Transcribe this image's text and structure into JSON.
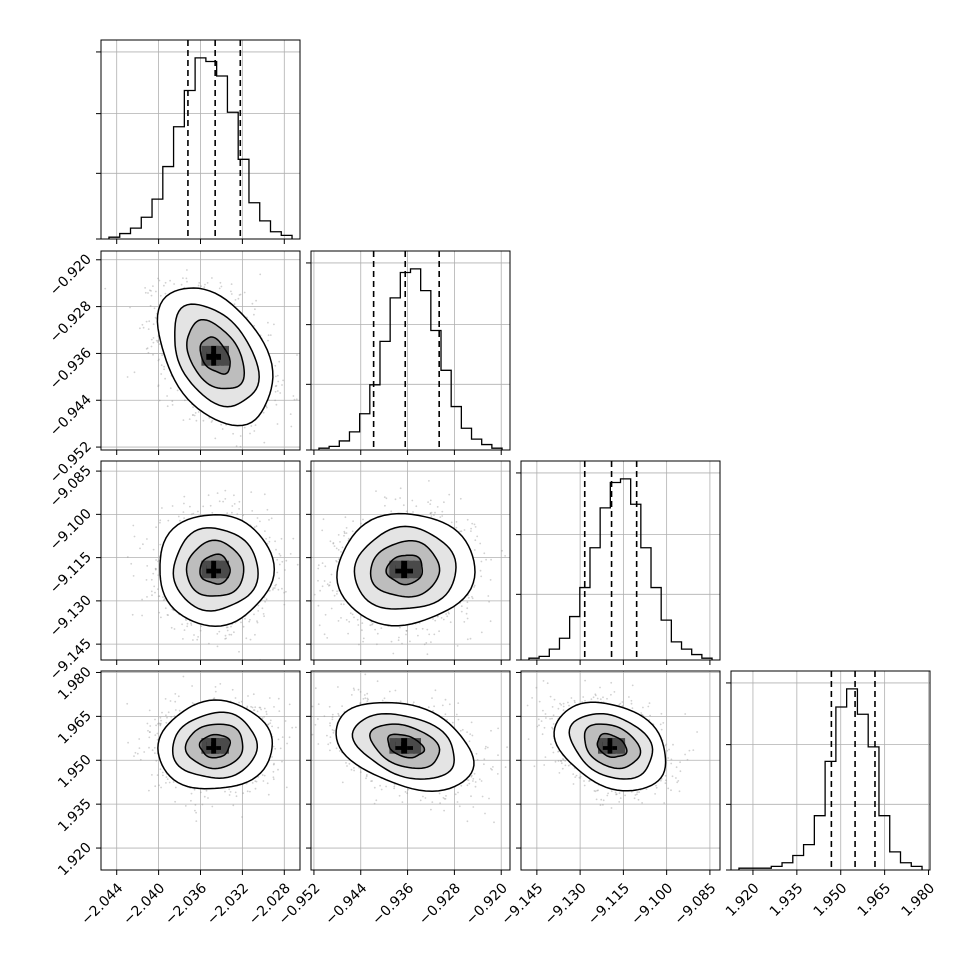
{
  "chart_data": {
    "type": "corner",
    "parameters": [
      {
        "range": [
          -2.0455,
          -2.0265
        ],
        "ticks": [
          -2.044,
          -2.04,
          -2.036,
          -2.032,
          -2.028
        ],
        "tick_labels": [
          "−2.044",
          "−2.040",
          "−2.036",
          "−2.032",
          "−2.028"
        ],
        "quantiles": [
          -2.0372,
          -2.0346,
          -2.0322
        ],
        "hist_counts": [
          1,
          3,
          6,
          12,
          22,
          40,
          62,
          82,
          100,
          98,
          90,
          70,
          44,
          20,
          10,
          4,
          2
        ]
      },
      {
        "range": [
          -0.9525,
          -0.9185
        ],
        "ticks": [
          -0.952,
          -0.944,
          -0.936,
          -0.928,
          -0.92
        ],
        "tick_labels": [
          "−0.952",
          "−0.944",
          "−0.936",
          "−0.928",
          "−0.920"
        ],
        "quantiles": [
          -0.9418,
          -0.9364,
          -0.9306
        ],
        "hist_counts": [
          1,
          2,
          5,
          10,
          20,
          36,
          60,
          84,
          98,
          100,
          88,
          66,
          44,
          24,
          12,
          6,
          3,
          1
        ]
      },
      {
        "range": [
          -9.1505,
          -9.0815
        ],
        "ticks": [
          -9.145,
          -9.13,
          -9.115,
          -9.1,
          -9.085
        ],
        "tick_labels": [
          "−9.145",
          "−9.130",
          "−9.115",
          "−9.100",
          "−9.085"
        ],
        "quantiles": [
          -9.1284,
          -9.1191,
          -9.1104
        ],
        "hist_counts": [
          1,
          2,
          6,
          12,
          24,
          40,
          62,
          84,
          98,
          100,
          86,
          62,
          40,
          22,
          10,
          6,
          3,
          1
        ]
      },
      {
        "range": [
          1.9125,
          1.9805
        ],
        "ticks": [
          1.92,
          1.935,
          1.95,
          1.965,
          1.98
        ],
        "tick_labels": [
          "1.920",
          "1.935",
          "1.950",
          "1.965",
          "1.980"
        ],
        "quantiles": [
          1.9468,
          1.9549,
          1.9617
        ],
        "hist_counts": [
          1,
          1,
          1,
          2,
          4,
          8,
          14,
          30,
          60,
          90,
          100,
          86,
          68,
          30,
          10,
          4,
          2
        ]
      }
    ],
    "pairs": [
      {
        "x": 0,
        "y": 1,
        "center": [
          -2.0346,
          -0.9364
        ],
        "spread": [
          0.0026,
          0.0056
        ],
        "corr": -0.4
      },
      {
        "x": 0,
        "y": 2,
        "center": [
          -2.0346,
          -9.1191
        ],
        "spread": [
          0.0026,
          0.0092
        ],
        "corr": 0.0
      },
      {
        "x": 1,
        "y": 2,
        "center": [
          -0.9364,
          -9.1191
        ],
        "spread": [
          0.0056,
          0.0092
        ],
        "corr": 0.05
      },
      {
        "x": 0,
        "y": 3,
        "center": [
          -2.0346,
          1.9549
        ],
        "spread": [
          0.0026,
          0.0072
        ],
        "corr": 0.05
      },
      {
        "x": 1,
        "y": 3,
        "center": [
          -0.9364,
          1.9549
        ],
        "spread": [
          0.0056,
          0.0072
        ],
        "corr": -0.35
      },
      {
        "x": 2,
        "y": 3,
        "center": [
          -9.1191,
          1.9549
        ],
        "spread": [
          0.0092,
          0.0072
        ],
        "corr": -0.3
      }
    ],
    "contour_levels_sigma": [
      0.5,
      1.0,
      1.5,
      2.0
    ],
    "grid": true,
    "colors": {
      "ink": "#000000",
      "grid": "#b0b0b0",
      "points": "#9a9a9a",
      "fill_levels": [
        "#ffffff",
        "#e4e4e4",
        "#bdbdbd",
        "#8a8a8a",
        "#4a4a4a",
        "#000000"
      ]
    }
  }
}
